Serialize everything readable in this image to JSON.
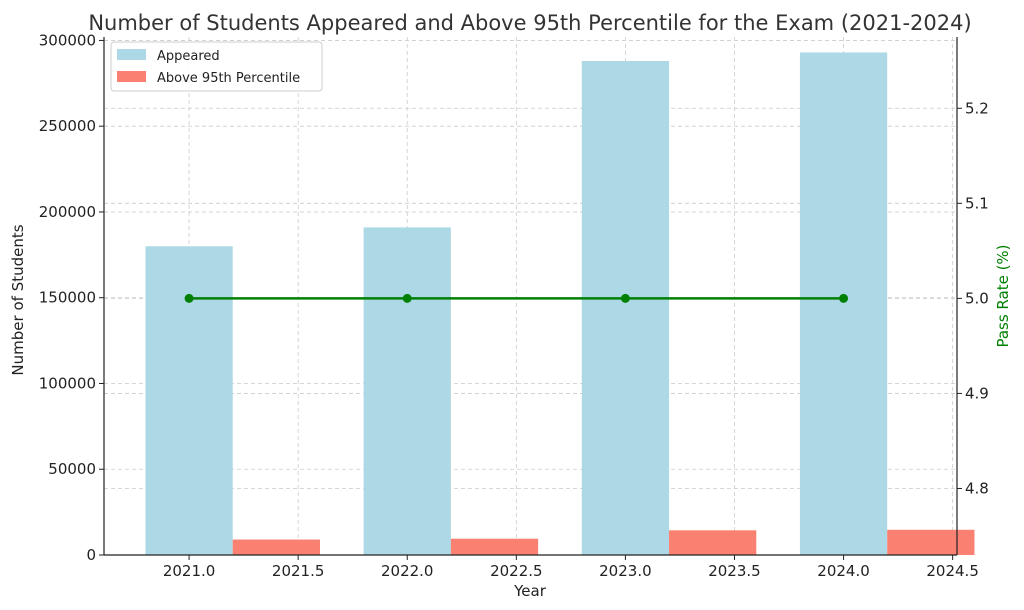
{
  "chart_data": {
    "type": "bar",
    "title": "Number of Students Appeared and Above 95th Percentile for the Exam (2021-2024)",
    "xlabel": "Year",
    "ylabel": "Number of Students",
    "y2label": "Pass Rate (%)",
    "x": [
      2021,
      2022,
      2023,
      2024
    ],
    "x_ticks": [
      "2021.0",
      "2021.5",
      "2022.0",
      "2022.5",
      "2023.0",
      "2023.5",
      "2024.0",
      "2024.5"
    ],
    "x_tick_values": [
      2021.0,
      2021.5,
      2022.0,
      2022.5,
      2023.0,
      2023.5,
      2024.0,
      2024.5
    ],
    "xlim": [
      2020.61,
      2024.52
    ],
    "ylim": [
      0,
      302000
    ],
    "y_ticks": [
      "0",
      "50000",
      "100000",
      "150000",
      "200000",
      "250000",
      "300000"
    ],
    "y_tick_values": [
      0,
      50000,
      100000,
      150000,
      200000,
      250000,
      300000
    ],
    "y2lim": [
      4.73,
      5.275
    ],
    "y2_ticks": [
      "4.8",
      "4.9",
      "5.0",
      "5.1",
      "5.2"
    ],
    "y2_tick_values": [
      4.8,
      4.9,
      5.0,
      5.1,
      5.2
    ],
    "series": [
      {
        "name": "Appeared",
        "type": "bar",
        "values": [
          180000,
          191000,
          288000,
          293000
        ],
        "color": "#add8e6",
        "x_offset": 0.0
      },
      {
        "name": "Above 95th Percentile",
        "type": "bar",
        "values": [
          9000,
          9500,
          14400,
          14700
        ],
        "color": "#fa8072",
        "x_offset": 0.4
      },
      {
        "type": "line",
        "axis": "right",
        "values": [
          5.0,
          5.0,
          5.0,
          5.0
        ],
        "color": "#008000"
      }
    ],
    "bar_width": 0.4,
    "grid": true,
    "legend": "top-left"
  }
}
